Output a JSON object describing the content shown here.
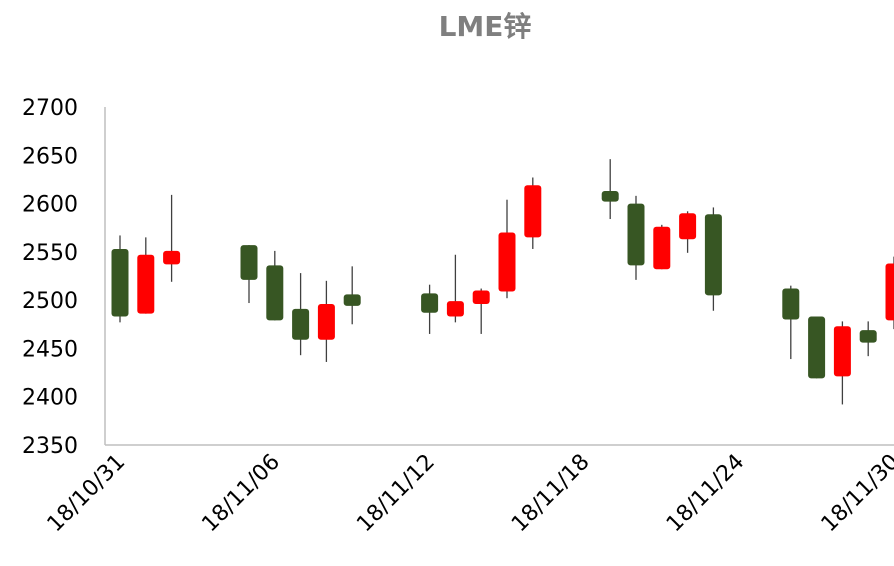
{
  "chart_data": {
    "type": "candlestick",
    "title": "LME锌",
    "x": [
      "18/10/31",
      "18/11/01",
      "18/11/02",
      "18/11/05",
      "18/11/06",
      "18/11/07",
      "18/11/08",
      "18/11/09",
      "18/11/12",
      "18/11/13",
      "18/11/14",
      "18/11/15",
      "18/11/16",
      "18/11/19",
      "18/11/20",
      "18/11/21",
      "18/11/22",
      "18/11/23",
      "18/11/26",
      "18/11/27",
      "18/11/28",
      "18/11/29",
      "18/11/30"
    ],
    "open": [
      2553,
      2486,
      2537,
      2557,
      2536,
      2491,
      2459,
      2506,
      2507,
      2483,
      2496,
      2509,
      2565,
      2613,
      2600,
      2532,
      2563,
      2589,
      2512,
      2483,
      2421,
      2469,
      2479
    ],
    "high": [
      2567,
      2565,
      2609,
      2557,
      2551,
      2528,
      2520,
      2535,
      2516,
      2547,
      2512,
      2604,
      2627,
      2646,
      2608,
      2578,
      2592,
      2596,
      2515,
      2483,
      2478,
      2478,
      2545
    ],
    "low": [
      2477,
      2486,
      2519,
      2497,
      2479,
      2443,
      2436,
      2475,
      2465,
      2477,
      2465,
      2502,
      2553,
      2584,
      2521,
      2532,
      2549,
      2489,
      2439,
      2419,
      2392,
      2442,
      2470
    ],
    "close": [
      2483,
      2547,
      2551,
      2521,
      2479,
      2459,
      2496,
      2494,
      2487,
      2499,
      2510,
      2570,
      2619,
      2602,
      2536,
      2576,
      2590,
      2505,
      2480,
      2419,
      2473,
      2456,
      2538
    ],
    "up_color": "#ff0000",
    "down_color": "#375623",
    "ylim": [
      2350,
      2700
    ],
    "yticks": [
      2350,
      2400,
      2450,
      2500,
      2550,
      2600,
      2650,
      2700
    ],
    "xticks": [
      "18/10/31",
      "18/11/06",
      "18/11/12",
      "18/11/18",
      "18/11/24",
      "18/11/30"
    ],
    "grid": false
  }
}
